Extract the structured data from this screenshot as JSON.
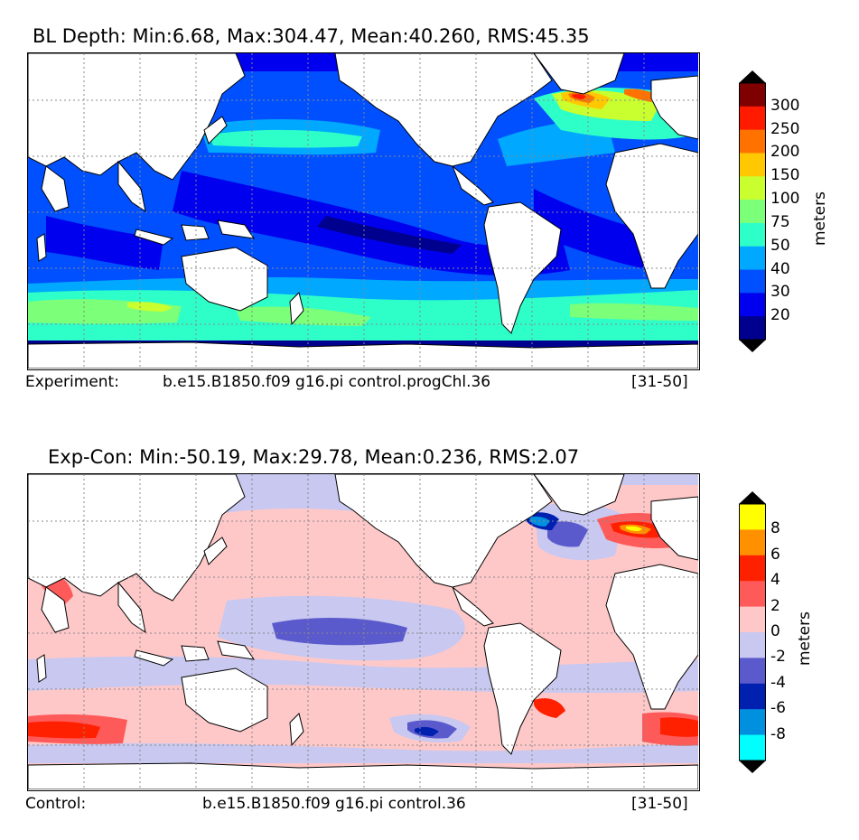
{
  "panel_top": {
    "title": "BL Depth: Min:6.68, Max:304.47, Mean:40.260, RMS:45.35",
    "caption_label": "Experiment:",
    "caption_case": "b.e15.B1850.f09 g16.pi control.progChl.36",
    "caption_years": "[31-50]",
    "colorbar": {
      "label": "meters",
      "ticks": [
        "300",
        "250",
        "200",
        "150",
        "100",
        "75",
        "50",
        "40",
        "30",
        "20"
      ],
      "colors": [
        "#7f0000",
        "#ff1a00",
        "#ff7200",
        "#ffc800",
        "#c9ff2e",
        "#7cff79",
        "#2effc9",
        "#00a8ff",
        "#0050ff",
        "#0000ee",
        "#00008f"
      ],
      "extend_color": "#000000"
    },
    "palette": {
      "deep": "#00008f",
      "d20": "#0000ee",
      "d30": "#0050ff",
      "d40": "#00a8ff",
      "d50": "#2effc9",
      "d75": "#7cff79",
      "d100": "#c9ff2e",
      "d150": "#ffc800",
      "d200": "#ff7200",
      "d250": "#ff1a00",
      "d300": "#7f0000"
    }
  },
  "panel_bottom": {
    "title": "Exp-Con: Min:-50.19, Max:29.78, Mean:0.236, RMS:2.07",
    "caption_label": "Control:",
    "caption_case": "b.e15.B1850.f09 g16.pi control.36",
    "caption_years": "[31-50]",
    "colorbar": {
      "label": "meters",
      "ticks": [
        "8",
        "6",
        "4",
        "2",
        "0",
        "-2",
        "-4",
        "-6",
        "-8"
      ],
      "colors": [
        "#ffff00",
        "#ff9000",
        "#ff2000",
        "#ff5a5a",
        "#ffc8c8",
        "#c8c8f0",
        "#5a5acc",
        "#0020b0",
        "#0090e0",
        "#00ffff"
      ],
      "extend_color": "#000000"
    },
    "palette": {
      "pos0": "#ffc8c8",
      "pos2": "#ff5a5a",
      "pos4": "#ff2000",
      "pos6": "#ff9000",
      "pos8": "#ffff00",
      "neg0": "#c8c8f0",
      "neg2": "#5a5acc",
      "neg4": "#0020b0",
      "neg6": "#0090e0",
      "neg8": "#00ffff"
    }
  },
  "land_color": "#ffffff",
  "coast_color": "#000000",
  "grid_color": "#888888"
}
